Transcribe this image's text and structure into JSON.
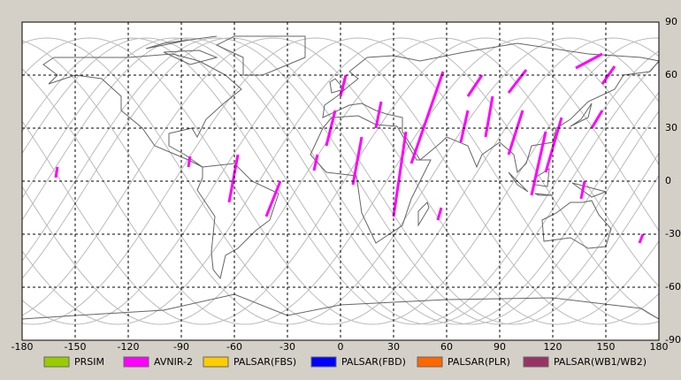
{
  "map": {
    "xticks": [
      -180,
      -150,
      -120,
      -90,
      -60,
      -30,
      0,
      30,
      60,
      90,
      120,
      150,
      180
    ],
    "yticks": [
      90,
      60,
      30,
      0,
      -30,
      -60,
      -90
    ],
    "legend": [
      {
        "name": "PRSIM",
        "color": "#99cc00"
      },
      {
        "name": "AVNIR-2",
        "color": "#ff00ff"
      },
      {
        "name": "PALSAR(FBS)",
        "color": "#ffcc00"
      },
      {
        "name": "PALSAR(FBD)",
        "color": "#0000ff"
      },
      {
        "name": "PALSAR(PLR)",
        "color": "#ff6600"
      },
      {
        "name": "PALSAR(WB1/WB2)",
        "color": "#993366"
      }
    ]
  }
}
